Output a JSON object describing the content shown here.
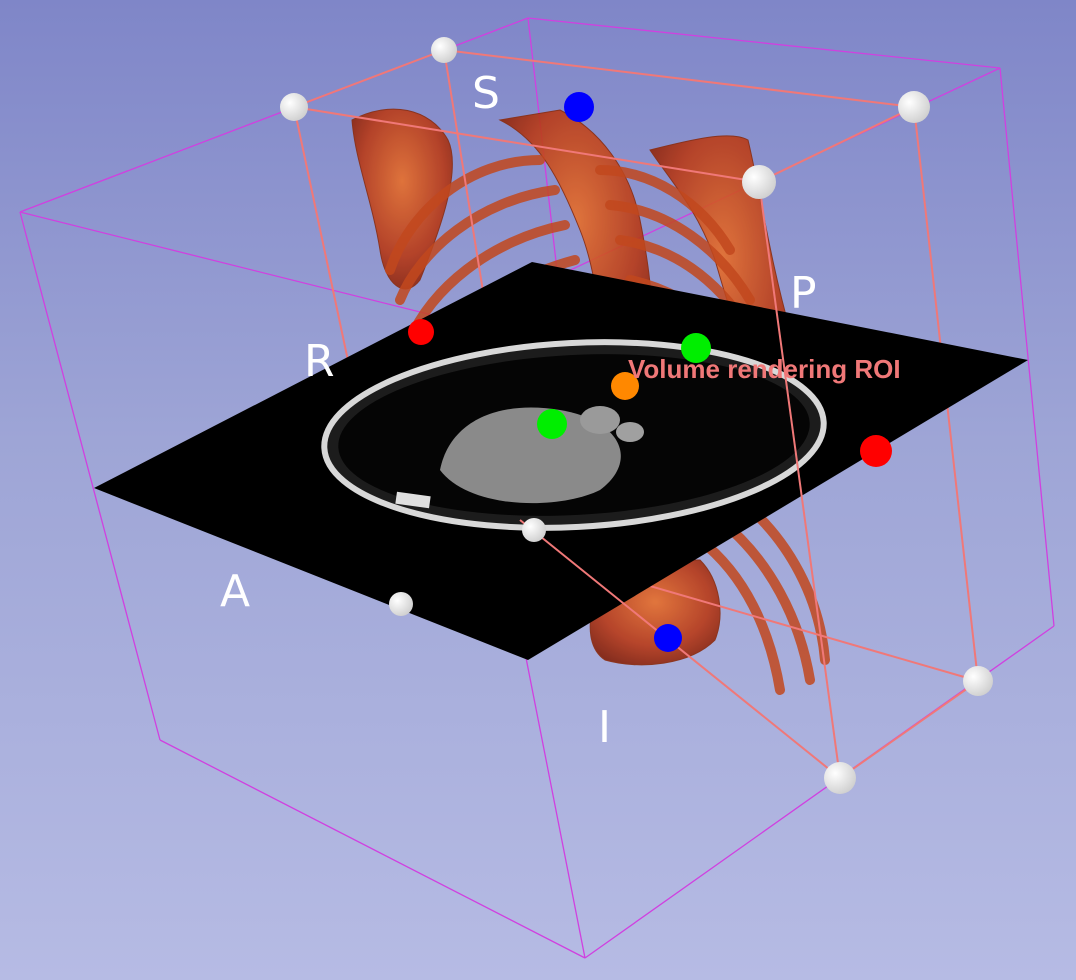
{
  "view": {
    "background_top": "#7f86c8",
    "background_bottom": "#b6bbe4",
    "bounding_box_color": "#d040e0",
    "roi_box_color": "#f07878"
  },
  "orientation_labels": {
    "superior": "S",
    "posterior": "P",
    "right": "R",
    "anterior": "A",
    "inferior": "I"
  },
  "roi": {
    "label": "Volume rendering ROI",
    "label_color": "#f07878"
  },
  "handle_colors": {
    "x_axis": "#ff0000",
    "y_axis": "#00ee00",
    "z_axis": "#0000ff",
    "center": "#ff8800",
    "corner": "#e6e6e6"
  },
  "volume_rendering": {
    "tissue_color": "#b83a18",
    "highlight_color": "#e8702c"
  },
  "slice": {
    "plane_color": "#000000",
    "body_outline": "#d8d8d8",
    "soft_tissue": "#7a7a7a"
  }
}
